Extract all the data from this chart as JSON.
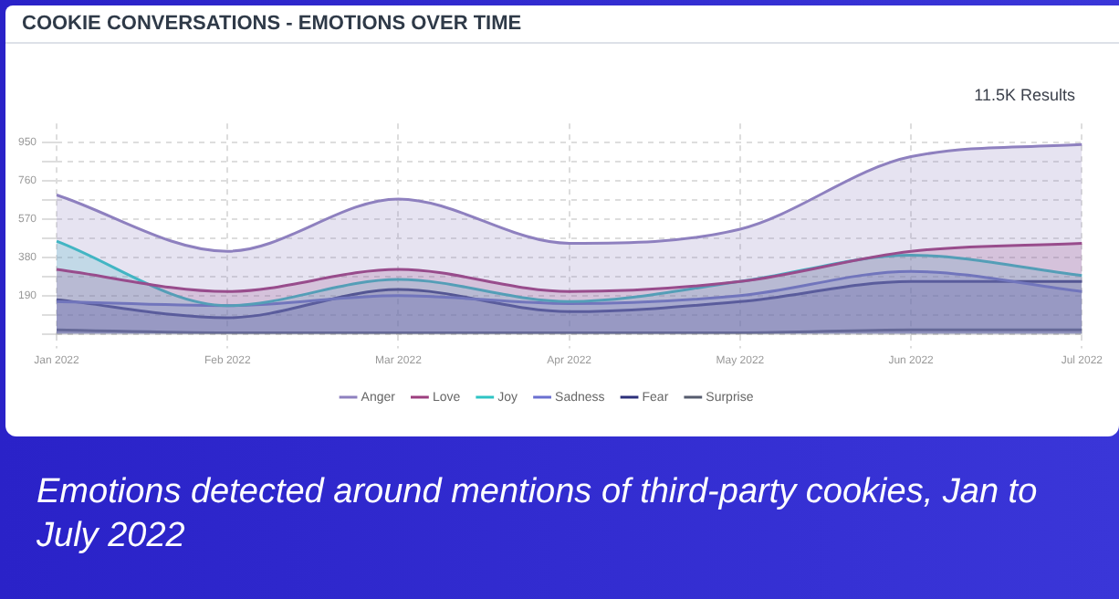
{
  "chart_data": {
    "type": "area",
    "title": "COOKIE CONVERSATIONS - EMOTIONS OVER TIME",
    "annotations": [
      "11.5K Results",
      "Emotions detected around mentions of third-party cookies, Jan to July 2022"
    ],
    "categories": [
      "Jan 2022",
      "Feb 2022",
      "Mar 2022",
      "Apr 2022",
      "May 2022",
      "Jun 2022",
      "Jul 2022"
    ],
    "series": [
      {
        "name": "Anger",
        "color": "#8e80bf",
        "values": [
          690,
          410,
          670,
          450,
          520,
          880,
          940
        ]
      },
      {
        "name": "Love",
        "color": "#9c3e7e",
        "values": [
          320,
          210,
          320,
          210,
          260,
          410,
          450
        ]
      },
      {
        "name": "Joy",
        "color": "#2ec4c4",
        "values": [
          460,
          140,
          270,
          160,
          260,
          390,
          290
        ]
      },
      {
        "name": "Sadness",
        "color": "#6a6fd0",
        "values": [
          160,
          140,
          190,
          150,
          190,
          310,
          210
        ]
      },
      {
        "name": "Fear",
        "color": "#2c2f7a",
        "values": [
          170,
          80,
          220,
          110,
          160,
          260,
          260
        ]
      },
      {
        "name": "Surprise",
        "color": "#555b6e",
        "values": [
          20,
          5,
          5,
          5,
          5,
          20,
          20
        ]
      }
    ],
    "ylim": [
      0,
      1045
    ],
    "yticks": [
      {
        "value": 0,
        "label": null
      },
      {
        "value": 95,
        "label": null
      },
      190,
      {
        "value": 285,
        "label": null
      },
      380,
      {
        "value": 475,
        "label": null
      },
      570,
      {
        "value": 665,
        "label": null
      },
      760,
      {
        "value": 855,
        "label": null
      },
      950
    ],
    "grid": true,
    "legend": "bottom"
  }
}
